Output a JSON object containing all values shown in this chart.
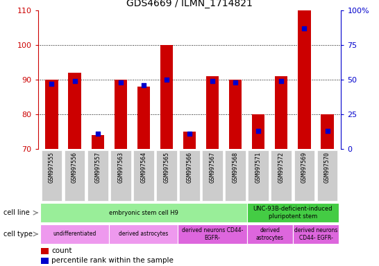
{
  "title": "GDS4669 / ILMN_1714821",
  "samples": [
    "GSM997555",
    "GSM997556",
    "GSM997557",
    "GSM997563",
    "GSM997564",
    "GSM997565",
    "GSM997566",
    "GSM997567",
    "GSM997568",
    "GSM997571",
    "GSM997572",
    "GSM997569",
    "GSM997570"
  ],
  "count_values": [
    90,
    92,
    74,
    90,
    88,
    100,
    75,
    91,
    90,
    80,
    91,
    110,
    80
  ],
  "percentile_values": [
    47,
    49,
    11,
    48,
    46,
    50,
    11,
    49,
    48,
    13,
    49,
    87,
    13
  ],
  "ylim_left": [
    70,
    110
  ],
  "ylim_right": [
    0,
    100
  ],
  "left_ticks": [
    70,
    80,
    90,
    100,
    110
  ],
  "right_ticks": [
    0,
    25,
    50,
    75,
    100
  ],
  "left_tick_labels": [
    "70",
    "80",
    "90",
    "100",
    "110"
  ],
  "right_tick_labels": [
    "0",
    "25",
    "50",
    "75",
    "100%"
  ],
  "left_color": "#cc0000",
  "right_color": "#0000cc",
  "bar_color": "#cc0000",
  "percentile_color": "#0000cc",
  "bar_width": 0.55,
  "cell_line_groups": [
    {
      "text": "embryonic stem cell H9",
      "start": 0,
      "end": 8,
      "color": "#99ee99"
    },
    {
      "text": "UNC-93B-deficient-induced\npluripotent stem",
      "start": 9,
      "end": 12,
      "color": "#44cc44"
    }
  ],
  "cell_type_groups": [
    {
      "text": "undifferentiated",
      "start": 0,
      "end": 2,
      "color": "#ee99ee"
    },
    {
      "text": "derived astrocytes",
      "start": 3,
      "end": 5,
      "color": "#ee99ee"
    },
    {
      "text": "derived neurons CD44-\nEGFR-",
      "start": 6,
      "end": 8,
      "color": "#dd66dd"
    },
    {
      "text": "derived\nastrocytes",
      "start": 9,
      "end": 10,
      "color": "#dd66dd"
    },
    {
      "text": "derived neurons\nCD44- EGFR-",
      "start": 11,
      "end": 12,
      "color": "#dd66dd"
    }
  ],
  "legend_count_color": "#cc0000",
  "legend_percentile_color": "#0000cc",
  "sample_box_color": "#cccccc",
  "grid_lines": [
    80,
    90,
    100
  ],
  "figsize": [
    5.46,
    3.84
  ],
  "dpi": 100
}
